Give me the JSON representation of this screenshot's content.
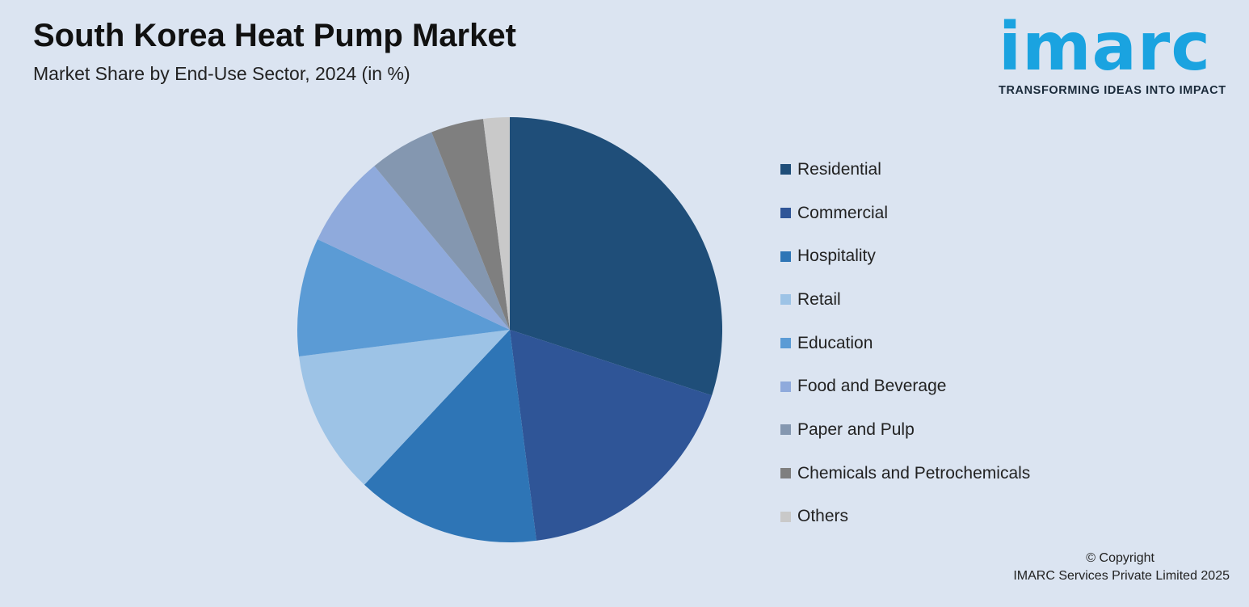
{
  "chart_data": {
    "type": "pie",
    "title": "South Korea Heat Pump Market",
    "subtitle": "Market Share by End-Use Sector, 2024 (in %)",
    "categories": [
      "Residential",
      "Commercial",
      "Hospitality",
      "Retail",
      "Education",
      "Food and Beverage",
      "Paper and Pulp",
      "Chemicals and Petrochemicals",
      "Others"
    ],
    "values": [
      30,
      18,
      14,
      11,
      9,
      7,
      5,
      4,
      2
    ],
    "colors": [
      "#1f4e79",
      "#2f5597",
      "#2e75b6",
      "#9dc3e6",
      "#5b9bd5",
      "#8faadc",
      "#8497b0",
      "#7f7f7f",
      "#c9c9c9"
    ],
    "legend_position": "right"
  },
  "logo": {
    "word": "imarc",
    "tagline": "TRANSFORMING IDEAS INTO IMPACT"
  },
  "footer": {
    "copyright": "© Copyright",
    "company": "IMARC Services Private Limited 2025"
  }
}
